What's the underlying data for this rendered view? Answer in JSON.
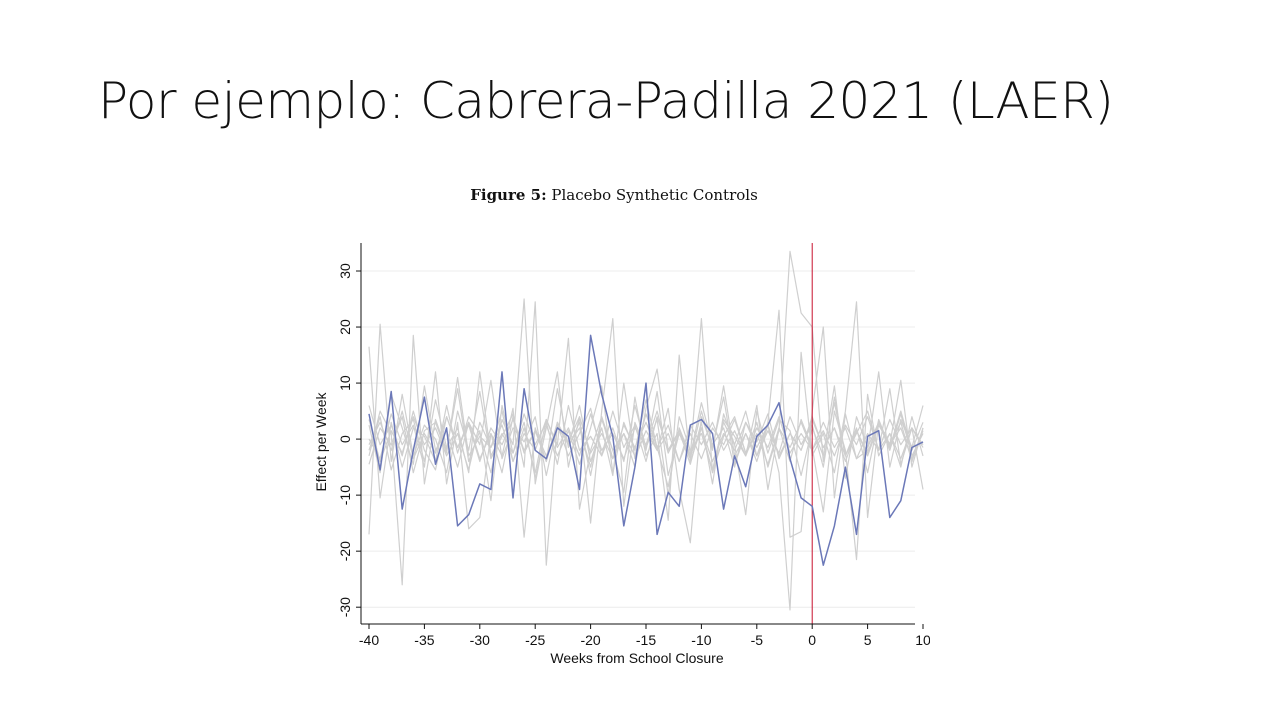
{
  "slide": {
    "title": "Por ejemplo: Cabrera-Padilla 2021 (LAER)"
  },
  "figure": {
    "label": "Figure 5:",
    "caption": "Placebo Synthetic Controls"
  },
  "colors": {
    "treated": "#6b78b8",
    "placebo": "#cfcfcf",
    "event_line": "#c8102e",
    "grid": "#ececec"
  },
  "chart_data": {
    "type": "line",
    "title": "Placebo Synthetic Controls",
    "xlabel": "Weeks from School Closure",
    "ylabel": "Effect per Week",
    "xlim": [
      -40,
      10
    ],
    "ylim": [
      -33,
      35
    ],
    "xticks": [
      -40,
      -35,
      -30,
      -25,
      -20,
      -15,
      -10,
      -5,
      0,
      5,
      10
    ],
    "yticks": [
      -30,
      -20,
      -10,
      0,
      10,
      20,
      30
    ],
    "grid": true,
    "vline": 0,
    "x": [
      -40,
      -39,
      -38,
      -37,
      -36,
      -35,
      -34,
      -33,
      -32,
      -31,
      -30,
      -29,
      -28,
      -27,
      -26,
      -25,
      -24,
      -23,
      -22,
      -21,
      -20,
      -19,
      -18,
      -17,
      -16,
      -15,
      -14,
      -13,
      -12,
      -11,
      -10,
      -9,
      -8,
      -7,
      -6,
      -5,
      -4,
      -3,
      -2,
      -1,
      0,
      1,
      2,
      3,
      4,
      5,
      6,
      7,
      8,
      9,
      10
    ],
    "treated": {
      "values": [
        4.5,
        -5.5,
        8.5,
        -12.5,
        -2.0,
        7.5,
        -4.5,
        2.0,
        -15.5,
        -13.5,
        -8.0,
        -9.0,
        12.0,
        -10.5,
        9.0,
        -2.0,
        -3.5,
        2.0,
        0.5,
        -9.0,
        18.5,
        8.0,
        0.5,
        -15.5,
        -5.0,
        10.0,
        -17.0,
        -9.5,
        -12.0,
        2.5,
        3.5,
        1.0,
        -12.5,
        -3.0,
        -8.5,
        0.5,
        2.5,
        6.5,
        -3.5,
        -10.5,
        -12.0,
        -22.5,
        -15.5,
        -5.0,
        -17.0,
        0.5,
        1.5,
        -14.0,
        -11.0,
        -1.5,
        -0.5
      ]
    },
    "placebos": [
      {
        "values": [
          16.5,
          -10.5,
          3.0,
          -5.0,
          2.0,
          0.5,
          -4.0,
          6.0,
          -2.5,
          4.0,
          1.0,
          -6.0,
          3.5,
          -1.0,
          25.0,
          -8.0,
          2.5,
          -3.0,
          1.5,
          -4.5,
          2.0,
          9.5,
          -6.0,
          3.0,
          -2.0,
          7.0,
          -1.5,
          -8.5,
          2.0,
          -3.0,
          21.5,
          -6.0,
          0.5,
          4.0,
          -2.5,
          3.0,
          -5.0,
          1.5,
          33.5,
          22.5,
          20.0,
          -4.0,
          6.5,
          -3.0,
          1.0,
          5.0,
          -2.0,
          9.0,
          -4.5,
          2.0,
          -9.0
        ]
      },
      {
        "values": [
          -17.0,
          20.5,
          -4.0,
          8.0,
          -3.0,
          2.5,
          0.0,
          -6.0,
          5.0,
          -2.0,
          8.5,
          -3.5,
          0.5,
          4.5,
          -5.0,
          24.5,
          -22.5,
          3.0,
          -1.0,
          6.0,
          -4.0,
          2.0,
          -6.5,
          10.0,
          -3.5,
          1.5,
          -2.0,
          5.5,
          -9.0,
          -18.5,
          4.0,
          -1.5,
          7.5,
          -4.5,
          1.0,
          -3.0,
          3.0,
          23.0,
          -17.5,
          -16.5,
          5.0,
          20.0,
          -10.5,
          4.5,
          -3.5,
          -2.0,
          12.0,
          -5.0,
          3.5,
          -1.5,
          6.0
        ]
      },
      {
        "values": [
          -3.0,
          5.0,
          1.0,
          -26.0,
          18.5,
          -8.0,
          3.5,
          -2.0,
          9.0,
          -4.0,
          1.5,
          -11.0,
          6.0,
          -2.5,
          3.0,
          -7.0,
          2.0,
          12.0,
          -5.0,
          4.0,
          -15.0,
          5.0,
          21.5,
          -12.0,
          3.0,
          -2.0,
          8.5,
          -6.5,
          1.0,
          -3.5,
          5.0,
          -2.0,
          9.5,
          -3.0,
          1.0,
          -4.0,
          2.5,
          -6.0,
          -30.5,
          15.5,
          -3.0,
          1.0,
          -6.0,
          5.0,
          24.5,
          -14.0,
          3.0,
          -1.0,
          10.5,
          -5.0,
          2.0
        ]
      },
      {
        "values": [
          0.0,
          -3.5,
          4.5,
          -1.0,
          2.5,
          -5.0,
          12.0,
          -8.0,
          3.0,
          -16.0,
          -14.0,
          1.0,
          -3.0,
          5.5,
          -17.5,
          2.0,
          -4.0,
          9.0,
          -1.5,
          3.0,
          -6.5,
          4.0,
          -2.0,
          -9.5,
          7.5,
          -3.0,
          1.0,
          -14.5,
          15.0,
          -4.0,
          2.0,
          -6.0,
          3.5,
          0.5,
          -3.0,
          6.0,
          -9.0,
          2.0,
          -4.0,
          3.5,
          -1.5,
          -13.0,
          5.0,
          -2.0,
          -21.5,
          8.0,
          -3.0,
          1.0,
          -5.0,
          4.0,
          -3.0
        ]
      },
      {
        "values": [
          -4.5,
          2.0,
          -1.0,
          4.0,
          -6.0,
          1.5,
          3.0,
          -2.5,
          11.0,
          -3.0,
          0.5,
          -1.5,
          5.0,
          -4.0,
          2.0,
          -6.0,
          3.5,
          -1.0,
          18.0,
          -12.5,
          -2.0,
          4.0,
          -3.5,
          1.0,
          -5.0,
          5.5,
          12.5,
          -2.0,
          1.5,
          -4.5,
          3.0,
          -8.0,
          4.5,
          -1.0,
          -13.5,
          5.0,
          -2.5,
          3.5,
          1.5,
          -6.5,
          2.0,
          -3.0,
          9.5,
          -7.0,
          4.0,
          -1.5,
          3.0,
          -2.0,
          4.5,
          -3.0,
          1.0
        ]
      },
      {
        "values": [
          2.5,
          -6.0,
          8.0,
          2.0,
          -4.5,
          9.5,
          -2.0,
          1.5,
          -5.0,
          3.0,
          -1.0,
          10.5,
          -3.5,
          2.0,
          -0.5,
          4.0,
          -6.5,
          2.5,
          -3.0,
          1.0,
          5.5,
          -3.0,
          2.0,
          -4.0,
          6.0,
          -1.5,
          3.5,
          -10.0,
          4.0,
          -2.0,
          1.0,
          -5.5,
          3.0,
          -1.0,
          5.0,
          -3.0,
          1.5,
          -2.5,
          4.0,
          -1.0,
          2.5,
          -5.0,
          7.5,
          -3.0,
          2.0,
          -6.0,
          3.5,
          -1.5,
          5.0,
          -2.0,
          3.0
        ]
      },
      {
        "values": [
          -2.0,
          4.0,
          -5.5,
          1.0,
          3.5,
          -4.0,
          7.0,
          -1.5,
          2.0,
          -6.0,
          12.0,
          -3.0,
          1.0,
          -2.5,
          4.5,
          -1.0,
          3.0,
          -4.5,
          6.0,
          -2.0,
          0.5,
          -3.0,
          5.0,
          -1.5,
          2.5,
          -4.0,
          4.0,
          -2.0,
          1.5,
          -3.0,
          6.5,
          -1.0,
          2.0,
          -5.0,
          3.0,
          -0.5,
          4.5,
          -3.5,
          1.0,
          -2.0,
          3.5,
          -1.5,
          2.0,
          -4.0,
          1.5,
          -3.0,
          2.5,
          -1.0,
          3.0,
          -4.0,
          2.0
        ]
      },
      {
        "values": [
          6.0,
          -1.0,
          2.5,
          -3.0,
          5.0,
          -2.0,
          -5.5,
          4.0,
          -1.5,
          3.0,
          -3.5,
          1.0,
          -6.0,
          4.0,
          -2.5,
          1.5,
          -4.0,
          3.0,
          -1.0,
          2.0,
          -5.0,
          3.5,
          -2.0,
          1.0,
          -3.0,
          4.5,
          -1.5,
          2.5,
          -4.0,
          1.0,
          -3.5,
          2.0,
          -1.0,
          3.5,
          -2.5,
          1.0,
          -4.5,
          2.0,
          -1.5,
          3.0,
          -2.0,
          1.5,
          -3.0,
          2.5,
          -1.0,
          4.0,
          -2.0,
          1.0,
          -3.5,
          2.0,
          -1.0
        ]
      },
      {
        "values": [
          -1.0,
          3.0,
          -2.0,
          5.0,
          -3.5,
          1.0,
          -2.5,
          4.0,
          -1.5,
          2.5,
          -4.0,
          2.0,
          -1.0,
          3.5,
          -2.0,
          1.5,
          -3.0,
          2.0,
          -0.5,
          4.0,
          -2.5,
          1.0,
          -3.5,
          2.5,
          -1.5,
          3.0,
          -2.0,
          1.0,
          -4.0,
          2.5,
          -1.0,
          3.0,
          -2.0,
          1.5,
          -3.0,
          2.0,
          -1.5,
          4.0,
          -2.5,
          1.0,
          -2.0,
          3.0,
          -1.5,
          2.0,
          -3.5,
          1.0,
          -2.0,
          3.5,
          -1.0,
          2.0,
          -1.5
        ]
      },
      {
        "values": [
          3.5,
          -4.0,
          1.5,
          -2.5,
          4.0,
          -1.0,
          2.0,
          -3.0,
          1.0,
          -5.5,
          3.0,
          -1.5,
          2.5,
          -4.0,
          1.0,
          -2.0,
          3.5,
          -1.5,
          2.0,
          -3.0,
          4.5,
          -2.0,
          1.0,
          -3.5,
          2.0,
          -1.0,
          5.0,
          -2.5,
          1.5,
          -3.0,
          2.0,
          -4.0,
          1.0,
          -2.0,
          3.0,
          -1.5,
          2.5,
          -3.0,
          1.0,
          -2.0,
          4.0,
          -1.5,
          2.0,
          -3.0,
          1.5,
          -2.5,
          3.0,
          -1.0,
          2.0,
          -3.5,
          1.5
        ]
      }
    ]
  }
}
